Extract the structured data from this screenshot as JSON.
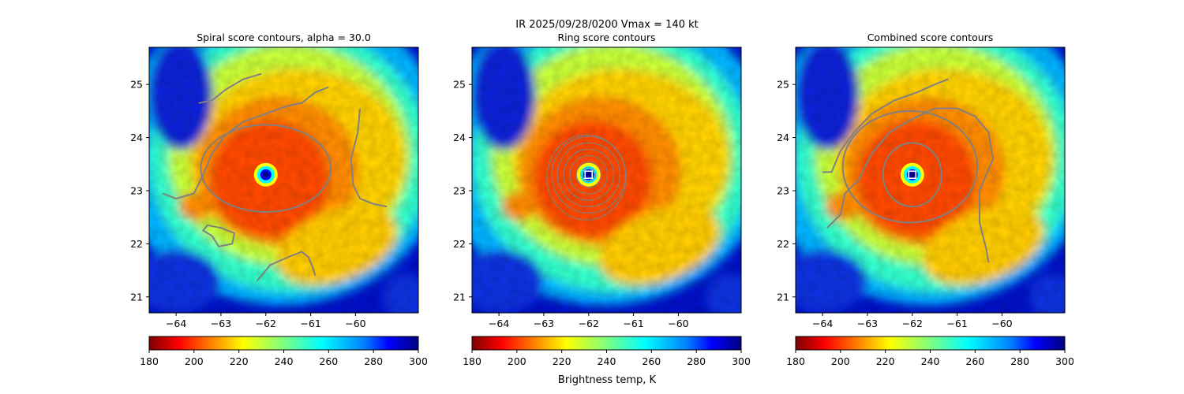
{
  "figure": {
    "suptitle_line1": "IR  2025/09/28/0200    Vmax = 140 kt"
  },
  "colormap": {
    "name": "jet",
    "stops": [
      "#00007f",
      "#0000ff",
      "#007fff",
      "#00ffff",
      "#7fff7f",
      "#ffff00",
      "#ff7f00",
      "#ff0000",
      "#7f0000"
    ],
    "reversed_on_colorbar": true,
    "contour_color": "#808080",
    "marker_color": "#ffffff",
    "marker_edge": "#444444"
  },
  "colorbar": {
    "range": [
      180,
      300
    ],
    "ticks": [
      "180",
      "200",
      "220",
      "240",
      "260",
      "280",
      "300"
    ],
    "label": "Brightness temp, K"
  },
  "chart_data": [
    {
      "type": "heatmap",
      "title": "Spiral score contours, alpha = 30.0",
      "xlim": [
        -64.6,
        -58.6
      ],
      "ylim": [
        20.7,
        25.7
      ],
      "xticks": [
        "−64",
        "−63",
        "−62",
        "−61",
        "−60"
      ],
      "yticks": [
        "21",
        "22",
        "23",
        "24",
        "25"
      ],
      "storm_center": {
        "lon": -62.0,
        "lat": 23.3
      },
      "contours": [
        [
          [
            -63.5,
            24.65
          ],
          [
            -63.2,
            24.7
          ],
          [
            -62.9,
            24.9
          ],
          [
            -62.5,
            25.1
          ],
          [
            -62.1,
            25.2
          ]
        ],
        [
          [
            -64.3,
            22.95
          ],
          [
            -64.0,
            22.85
          ],
          [
            -63.6,
            22.95
          ],
          [
            -63.4,
            23.3
          ],
          [
            -63.2,
            23.7
          ],
          [
            -62.9,
            24.05
          ],
          [
            -62.5,
            24.3
          ],
          [
            -62.0,
            24.45
          ],
          [
            -61.5,
            24.6
          ],
          [
            -61.2,
            24.65
          ],
          [
            -60.9,
            24.85
          ],
          [
            -60.6,
            24.95
          ]
        ],
        [
          [
            -59.9,
            24.55
          ],
          [
            -59.95,
            24.1
          ],
          [
            -60.1,
            23.6
          ],
          [
            -60.05,
            23.1
          ],
          [
            -59.9,
            22.85
          ],
          [
            -59.6,
            22.75
          ],
          [
            -59.3,
            22.7
          ]
        ],
        [
          [
            -63.2,
            22.15
          ],
          [
            -63.05,
            21.95
          ],
          [
            -62.75,
            22.0
          ],
          [
            -62.7,
            22.2
          ],
          [
            -63.0,
            22.3
          ],
          [
            -63.3,
            22.35
          ],
          [
            -63.4,
            22.25
          ],
          [
            -63.2,
            22.15
          ]
        ],
        [
          [
            -62.2,
            21.3
          ],
          [
            -61.9,
            21.6
          ],
          [
            -61.5,
            21.75
          ],
          [
            -61.2,
            21.85
          ],
          [
            -61.05,
            21.75
          ],
          [
            -60.95,
            21.55
          ],
          [
            -60.9,
            21.4
          ]
        ]
      ],
      "rings": [
        {
          "cx": -62.0,
          "cy": 23.42,
          "rx": 1.45,
          "ry": 0.82
        }
      ],
      "markers": []
    },
    {
      "type": "heatmap",
      "title": "Ring score contours",
      "xlim": [
        -64.6,
        -58.6
      ],
      "ylim": [
        20.7,
        25.7
      ],
      "xticks": [
        "−64",
        "−63",
        "−62",
        "−61",
        "−60"
      ],
      "yticks": [
        "21",
        "22",
        "23",
        "24",
        "25"
      ],
      "storm_center": {
        "lon": -62.0,
        "lat": 23.3
      },
      "contours": [],
      "rings": [
        {
          "cx": -62.0,
          "cy": 23.3,
          "rx": 0.15,
          "ry": 0.13
        },
        {
          "cx": -62.0,
          "cy": 23.3,
          "rx": 0.28,
          "ry": 0.24
        },
        {
          "cx": -62.0,
          "cy": 23.3,
          "rx": 0.42,
          "ry": 0.36
        },
        {
          "cx": -62.0,
          "cy": 23.3,
          "rx": 0.56,
          "ry": 0.48
        },
        {
          "cx": -62.0,
          "cy": 23.3,
          "rx": 0.7,
          "ry": 0.6
        },
        {
          "cx": -62.0,
          "cy": 23.3,
          "rx": 0.82,
          "ry": 0.72
        },
        {
          "cx": -62.05,
          "cy": 23.25,
          "rx": 0.88,
          "ry": 0.8
        }
      ],
      "markers": [
        {
          "lon": -62.0,
          "lat": 23.3,
          "shape": "square"
        }
      ]
    },
    {
      "type": "heatmap",
      "title": "Combined score contours",
      "xlim": [
        -64.6,
        -58.6
      ],
      "ylim": [
        20.7,
        25.7
      ],
      "xticks": [
        "−64",
        "−63",
        "−62",
        "−61",
        "−60"
      ],
      "yticks": [
        "21",
        "22",
        "23",
        "24",
        "25"
      ],
      "storm_center": {
        "lon": -62.0,
        "lat": 23.3
      },
      "contours": [
        [
          [
            -64.0,
            23.35
          ],
          [
            -63.8,
            23.35
          ],
          [
            -63.6,
            23.75
          ],
          [
            -63.3,
            24.1
          ],
          [
            -62.9,
            24.45
          ],
          [
            -62.4,
            24.7
          ],
          [
            -61.9,
            24.85
          ],
          [
            -61.5,
            25.0
          ],
          [
            -61.2,
            25.1
          ]
        ],
        [
          [
            -63.9,
            22.3
          ],
          [
            -63.6,
            22.55
          ],
          [
            -63.5,
            22.95
          ],
          [
            -63.2,
            23.2
          ],
          [
            -62.9,
            23.7
          ],
          [
            -62.5,
            24.1
          ],
          [
            -62.0,
            24.35
          ],
          [
            -61.5,
            24.55
          ],
          [
            -61.0,
            24.55
          ],
          [
            -60.6,
            24.4
          ],
          [
            -60.3,
            24.1
          ],
          [
            -60.2,
            23.6
          ],
          [
            -60.5,
            23.0
          ],
          [
            -60.5,
            22.4
          ],
          [
            -60.35,
            21.9
          ],
          [
            -60.3,
            21.65
          ]
        ]
      ],
      "rings": [
        {
          "cx": -62.05,
          "cy": 23.45,
          "rx": 1.5,
          "ry": 1.05
        },
        {
          "cx": -62.0,
          "cy": 23.3,
          "rx": 0.65,
          "ry": 0.6
        }
      ],
      "markers": [
        {
          "lon": -62.0,
          "lat": 23.3,
          "shape": "square"
        }
      ]
    }
  ]
}
